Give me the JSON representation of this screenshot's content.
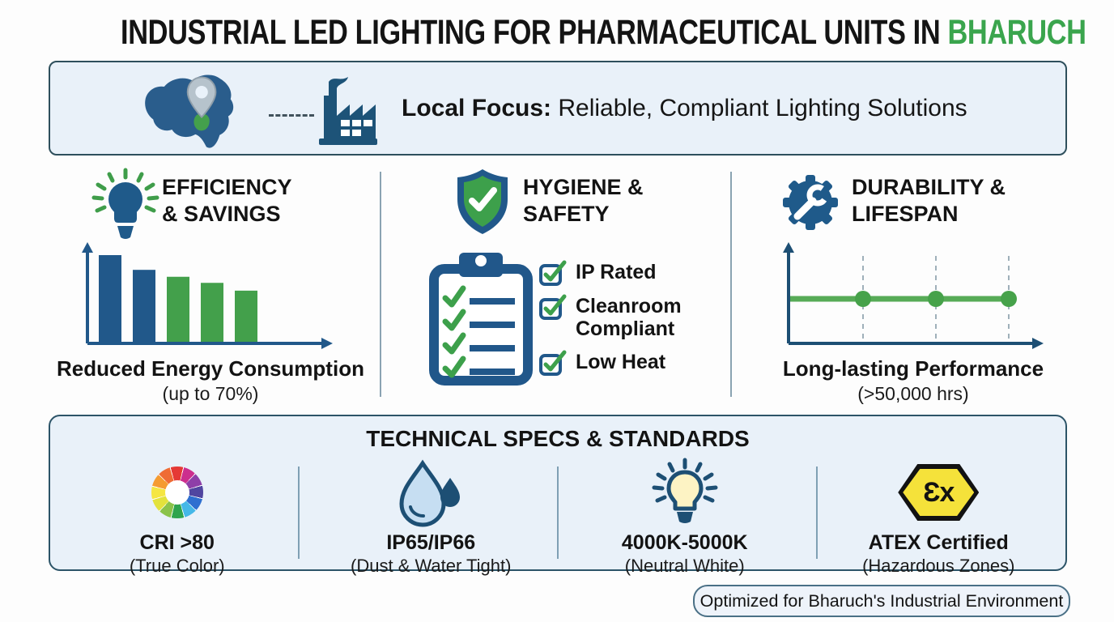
{
  "page": {
    "title_main": "INDUSTRIAL LED LIGHTING FOR PHARMACEUTICAL UNITS IN",
    "title_highlight": "BHARUCH"
  },
  "banner": {
    "icons": [
      "gujarat-map-with-location-pin",
      "dashed-connector",
      "factory"
    ],
    "label_bold": "Local Focus:",
    "label_rest": "Reliable, Compliant Lighting Solutions"
  },
  "columns": [
    {
      "icon": "lightbulb-with-rays",
      "title_line1": "EFFICIENCY",
      "title_line2": "& SAVINGS",
      "caption": "Reduced Energy Consumption",
      "caption_sub": "(up to 70%)"
    },
    {
      "icon": "shield-checkmark",
      "title_line1": "HYGIENE &",
      "title_line2": "SAFETY",
      "checklist": [
        "IP Rated",
        "Cleanroom Compliant",
        "Low Heat"
      ]
    },
    {
      "icon": "gear-with-wrench",
      "title_line1": "DURABILITY &",
      "title_line2": "LIFESPAN",
      "caption": "Long-lasting Performance",
      "caption_sub": "(>50,000 hrs)"
    }
  ],
  "chart_data": [
    {
      "type": "bar",
      "title": "Reduced Energy Consumption (up to 70%)",
      "categories": [
        "1",
        "2",
        "3",
        "4",
        "5"
      ],
      "values": [
        100,
        83,
        75,
        68,
        59
      ],
      "bar_colors": [
        "#21588a",
        "#21588a",
        "#43a04b",
        "#43a04b",
        "#43a04b"
      ],
      "xlabel": "",
      "ylabel": "",
      "ylim": [
        0,
        100
      ],
      "grid": false,
      "axis_style": "arrows-no-ticks"
    },
    {
      "type": "line",
      "title": "Long-lasting Performance (>50,000 hrs)",
      "x": [
        0,
        3
      ],
      "values": [
        100,
        100
      ],
      "markers": [
        1,
        2,
        3
      ],
      "gridlines": [
        1,
        2,
        3
      ],
      "line_color": "#57ab57",
      "marker_color": "#46a24a",
      "xlabel": "",
      "ylabel": "",
      "ylim": [
        0,
        120
      ],
      "grid": "dashed-vertical",
      "axis_style": "arrows-no-ticks"
    }
  ],
  "specs_panel": {
    "title": "TECHNICAL SPECS & STANDARDS",
    "items": [
      {
        "icon": "color-wheel",
        "label": "CRI >80",
        "sub": "(True Color)"
      },
      {
        "icon": "water-droplets",
        "label": "IP65/IP66",
        "sub": "(Dust & Water Tight)"
      },
      {
        "icon": "led-bulb",
        "label": "4000K-5000K",
        "sub": "(Neutral White)"
      },
      {
        "icon": "atex-ex-hexagon",
        "label": "ATEX Certified",
        "sub": "(Hazardous Zones)",
        "atex_glyph": "Ɛx"
      }
    ]
  },
  "footer": {
    "badge": "Optimized for Bharuch's Industrial Environment"
  },
  "colors": {
    "blue": "#21588a",
    "deep": "#1d4f74",
    "green": "#43a04b",
    "title-green": "#3aa54d",
    "panel-bg": "#e9f1f9",
    "panel-border": "#2c5468",
    "divider": "#8aa3b2",
    "text": "#161616"
  }
}
